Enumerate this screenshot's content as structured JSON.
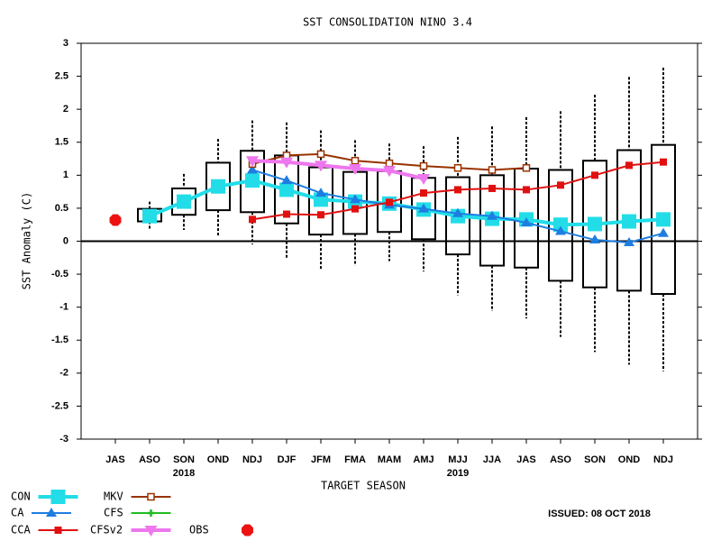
{
  "chart_data": {
    "type": "line",
    "title": "SST CONSOLIDATION NINO 3.4",
    "ylabel": "SST Anomaly (C)",
    "xlabel": "TARGET SEASON",
    "categories": [
      "JAS",
      "ASO",
      "SON",
      "OND",
      "NDJ",
      "DJF",
      "JFM",
      "FMA",
      "MAM",
      "AMJ",
      "MJJ",
      "JJA",
      "JAS",
      "ASO",
      "SON",
      "OND",
      "NDJ"
    ],
    "year_labels": [
      {
        "category": 2,
        "label": "2018"
      },
      {
        "category": 10,
        "label": "2019"
      }
    ],
    "ylim": [
      -3,
      3
    ],
    "yticks": [
      -3,
      -2.5,
      -2,
      -1.5,
      -1,
      -0.5,
      0,
      0.5,
      1,
      1.5,
      2,
      2.5,
      3
    ],
    "issued": "ISSUED: 08 OCT 2018",
    "spread": {
      "box_low": [
        null,
        0.3,
        0.4,
        0.47,
        0.44,
        0.27,
        0.1,
        0.11,
        0.14,
        0.03,
        -0.2,
        -0.37,
        -0.4,
        -0.6,
        -0.7,
        -0.75,
        -0.8
      ],
      "box_high": [
        null,
        0.49,
        0.8,
        1.19,
        1.37,
        1.3,
        1.12,
        1.05,
        1.06,
        0.96,
        0.97,
        1.0,
        1.1,
        1.08,
        1.22,
        1.38,
        1.46
      ],
      "whisker_low": [
        null,
        0.18,
        0.17,
        0.08,
        -0.05,
        -0.27,
        -0.43,
        -0.37,
        -0.3,
        -0.46,
        -0.82,
        -1.06,
        -1.17,
        -1.45,
        -1.68,
        -1.87,
        -1.97
      ],
      "whisker_high": [
        null,
        0.6,
        1.02,
        1.55,
        1.83,
        1.8,
        1.68,
        1.53,
        1.48,
        1.44,
        1.58,
        1.74,
        1.88,
        1.97,
        2.22,
        2.49,
        2.63
      ]
    },
    "series": [
      {
        "name": "CON",
        "color": "#22dde8",
        "marker": "square-big",
        "values": [
          null,
          0.38,
          0.6,
          0.83,
          0.92,
          0.78,
          0.63,
          0.6,
          0.57,
          0.48,
          0.38,
          0.34,
          0.33,
          0.25,
          0.26,
          0.3,
          0.33
        ]
      },
      {
        "name": "CA",
        "color": "#1e7de0",
        "marker": "triangle",
        "values": [
          null,
          null,
          null,
          null,
          1.08,
          0.92,
          0.73,
          0.63,
          0.55,
          0.49,
          0.42,
          0.38,
          0.28,
          0.15,
          0.02,
          -0.02,
          0.12
        ]
      },
      {
        "name": "CCA",
        "color": "#e01010",
        "marker": "square",
        "values": [
          null,
          null,
          null,
          null,
          0.33,
          0.41,
          0.4,
          0.49,
          0.59,
          0.73,
          0.78,
          0.8,
          0.78,
          0.85,
          1.0,
          1.15,
          1.2
        ]
      },
      {
        "name": "MKV",
        "color": "#993300",
        "marker": "open-square",
        "values": [
          null,
          null,
          null,
          null,
          1.17,
          1.3,
          1.32,
          1.22,
          1.18,
          1.14,
          1.11,
          1.08,
          1.11,
          null,
          null,
          null,
          null
        ]
      },
      {
        "name": "CFS",
        "color": "#22bb22",
        "marker": "plus",
        "values": [
          null,
          null,
          null,
          null,
          null,
          null,
          null,
          null,
          null,
          null,
          null,
          null,
          null,
          null,
          null,
          null,
          null
        ]
      },
      {
        "name": "CFSv2",
        "color": "#ee77ee",
        "marker": "inv-triangle",
        "values": [
          null,
          null,
          null,
          null,
          1.22,
          1.2,
          1.15,
          1.1,
          1.07,
          0.95,
          null,
          null,
          null,
          null,
          null,
          null,
          null
        ]
      },
      {
        "name": "OBS",
        "color": "#ee1111",
        "marker": "octagon",
        "values": [
          0.32,
          null,
          null,
          null,
          null,
          null,
          null,
          null,
          null,
          null,
          null,
          null,
          null,
          null,
          null,
          null,
          null
        ]
      }
    ]
  }
}
